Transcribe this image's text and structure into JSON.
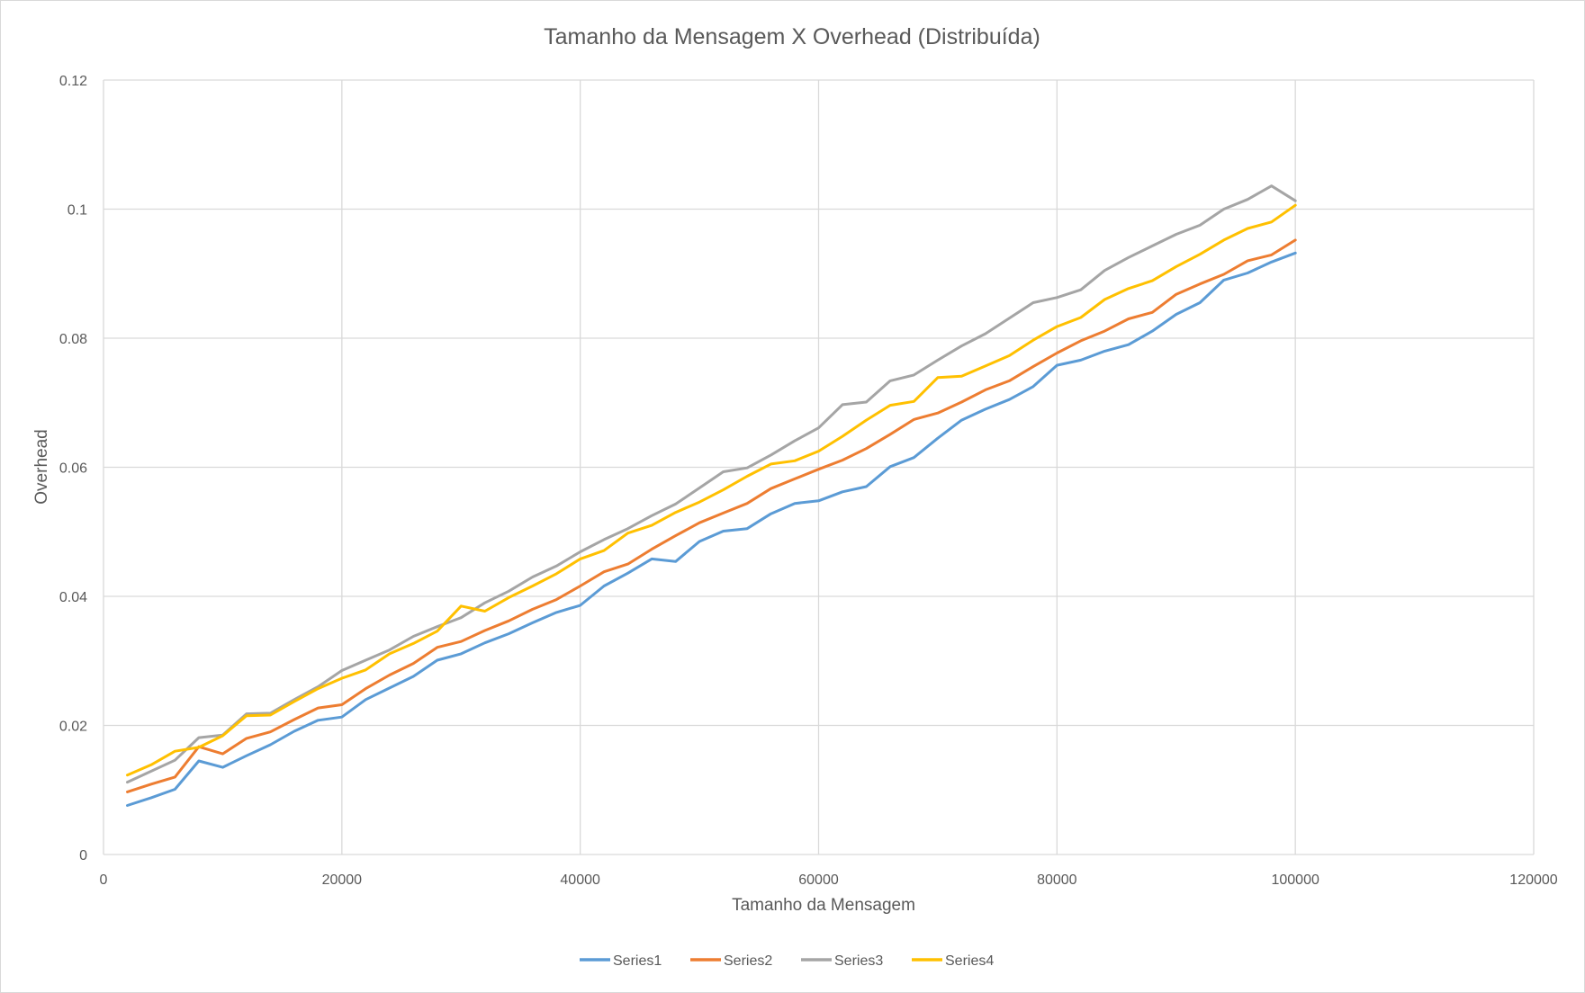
{
  "chart_data": {
    "type": "line",
    "title": "Tamanho da Mensagem X Overhead (Distribuída)",
    "xlabel": "Tamanho da Mensagem",
    "ylabel": "Overhead",
    "xlim": [
      0,
      120000
    ],
    "ylim": [
      0,
      0.12
    ],
    "x_ticks": [
      "0",
      "20000",
      "40000",
      "60000",
      "80000",
      "100000",
      "120000"
    ],
    "y_ticks": [
      "0",
      "0.02",
      "0.04",
      "0.06",
      "0.08",
      "0.1",
      "0.12"
    ],
    "grid": true,
    "legend_position": "bottom",
    "x": [
      2000,
      4000,
      6000,
      8000,
      10000,
      12000,
      14000,
      16000,
      18000,
      20000,
      22000,
      24000,
      26000,
      28000,
      30000,
      32000,
      34000,
      36000,
      38000,
      40000,
      42000,
      44000,
      46000,
      48000,
      50000,
      52000,
      54000,
      56000,
      58000,
      60000,
      62000,
      64000,
      66000,
      68000,
      70000,
      72000,
      74000,
      76000,
      78000,
      80000,
      82000,
      84000,
      86000,
      88000,
      90000,
      92000,
      94000,
      96000,
      98000,
      100000
    ],
    "series": [
      {
        "name": "Series1",
        "color": "#5b9bd5",
        "values": [
          0.0076,
          0.0088,
          0.0101,
          0.0145,
          0.0135,
          0.0153,
          0.017,
          0.0191,
          0.0208,
          0.0213,
          0.024,
          0.0258,
          0.0276,
          0.0301,
          0.0311,
          0.0328,
          0.0342,
          0.0359,
          0.0375,
          0.0386,
          0.0416,
          0.0436,
          0.0458,
          0.0454,
          0.0485,
          0.0501,
          0.0505,
          0.0528,
          0.0544,
          0.0548,
          0.0562,
          0.057,
          0.0601,
          0.0615,
          0.0645,
          0.0673,
          0.069,
          0.0705,
          0.0725,
          0.0758,
          0.0766,
          0.078,
          0.079,
          0.0811,
          0.0837,
          0.0855,
          0.089,
          0.0901,
          0.0918,
          0.0932
        ]
      },
      {
        "name": "Series2",
        "color": "#ed7d31",
        "values": [
          0.0097,
          0.0109,
          0.012,
          0.0167,
          0.0156,
          0.018,
          0.019,
          0.0209,
          0.0227,
          0.0232,
          0.0257,
          0.0278,
          0.0296,
          0.0321,
          0.033,
          0.0347,
          0.0362,
          0.038,
          0.0395,
          0.0416,
          0.0438,
          0.045,
          0.0473,
          0.0494,
          0.0514,
          0.0529,
          0.0544,
          0.0567,
          0.0582,
          0.0597,
          0.0611,
          0.0629,
          0.0651,
          0.0674,
          0.0684,
          0.0701,
          0.072,
          0.0734,
          0.0756,
          0.0777,
          0.0796,
          0.0811,
          0.083,
          0.084,
          0.0868,
          0.0884,
          0.0899,
          0.092,
          0.0929,
          0.0952
        ]
      },
      {
        "name": "Series3",
        "color": "#a5a5a5",
        "values": [
          0.0112,
          0.0129,
          0.0146,
          0.0181,
          0.0185,
          0.0218,
          0.0219,
          0.024,
          0.026,
          0.0285,
          0.0301,
          0.0317,
          0.0338,
          0.0353,
          0.0367,
          0.039,
          0.0408,
          0.043,
          0.0447,
          0.0469,
          0.0488,
          0.0505,
          0.0525,
          0.0543,
          0.0568,
          0.0593,
          0.0599,
          0.0619,
          0.0641,
          0.0661,
          0.0697,
          0.0701,
          0.0734,
          0.0743,
          0.0766,
          0.0788,
          0.0807,
          0.0831,
          0.0855,
          0.0863,
          0.0875,
          0.0905,
          0.0925,
          0.0943,
          0.0961,
          0.0975,
          0.1,
          0.1015,
          0.1036,
          0.1013
        ]
      },
      {
        "name": "Series4",
        "color": "#ffc000",
        "values": [
          0.0123,
          0.0139,
          0.016,
          0.0166,
          0.0184,
          0.0215,
          0.0216,
          0.0237,
          0.0257,
          0.0273,
          0.0286,
          0.0311,
          0.0327,
          0.0346,
          0.0385,
          0.0377,
          0.0398,
          0.0416,
          0.0435,
          0.0458,
          0.0471,
          0.0498,
          0.051,
          0.053,
          0.0546,
          0.0565,
          0.0586,
          0.0605,
          0.061,
          0.0625,
          0.0648,
          0.0673,
          0.0696,
          0.0702,
          0.0739,
          0.0741,
          0.0757,
          0.0773,
          0.0797,
          0.0818,
          0.0832,
          0.086,
          0.0877,
          0.0889,
          0.0911,
          0.093,
          0.0952,
          0.097,
          0.098,
          0.1006
        ]
      }
    ]
  }
}
